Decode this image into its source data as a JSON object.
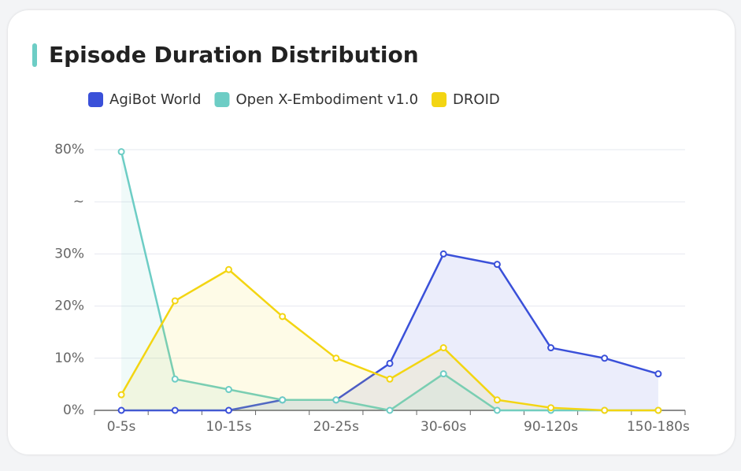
{
  "chart_data": {
    "type": "line",
    "title": "Episode Duration Distribution",
    "categories": [
      "0-5s",
      null,
      "10-15s",
      null,
      "20-25s",
      null,
      "30-60s",
      null,
      "90-120s",
      null,
      "150-180s"
    ],
    "series": [
      {
        "name": "AgiBot World",
        "color": "#3a50d9",
        "values": [
          0,
          0,
          0,
          2,
          2,
          9,
          30,
          28,
          12,
          10,
          7
        ]
      },
      {
        "name": "Open X-Embodiment v1.0",
        "color": "#6dcdc5",
        "values": [
          79,
          6,
          4,
          2,
          2,
          0,
          7,
          0,
          0,
          0,
          0
        ]
      },
      {
        "name": "DROID",
        "color": "#f3d512",
        "values": [
          3,
          21,
          27,
          18,
          10,
          6,
          12,
          2,
          0.5,
          0,
          0
        ]
      }
    ],
    "ylim": [
      0,
      80
    ],
    "yticks": [
      {
        "value": 0,
        "label": "0%"
      },
      {
        "value": 10,
        "label": "10%"
      },
      {
        "value": 20,
        "label": "20%"
      },
      {
        "value": 30,
        "label": "30%"
      },
      {
        "value": 55,
        "label": "~"
      },
      {
        "value": 80,
        "label": "80%"
      }
    ],
    "grid": true,
    "area": true
  }
}
